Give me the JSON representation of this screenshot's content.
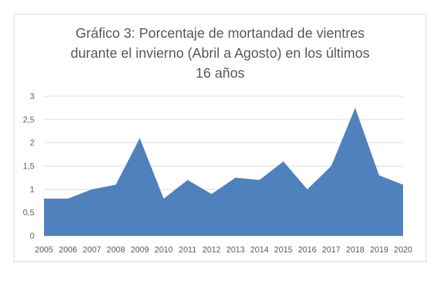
{
  "chart_data": {
    "type": "area",
    "title_lines": [
      "Gráfico 3: Porcentaje de mortandad de vientres",
      "durante el invierno (Abril a Agosto) en los últimos",
      "16 años"
    ],
    "x": [
      "2005",
      "2006",
      "2007",
      "2008",
      "2009",
      "2010",
      "2011",
      "2012",
      "2013",
      "2014",
      "2015",
      "2016",
      "2017",
      "2018",
      "2019",
      "2020"
    ],
    "series": [
      {
        "values": [
          0.8,
          0.8,
          1.0,
          1.1,
          2.1,
          0.8,
          1.2,
          0.9,
          1.25,
          1.2,
          1.6,
          1.0,
          1.5,
          2.75,
          1.3,
          1.1
        ]
      }
    ],
    "ylim": [
      0,
      3
    ],
    "yticks": [
      "0",
      "0,5",
      "1",
      "1,5",
      "2",
      "2,5",
      "3"
    ],
    "grid": true,
    "fill_color": "#4f81bd"
  }
}
